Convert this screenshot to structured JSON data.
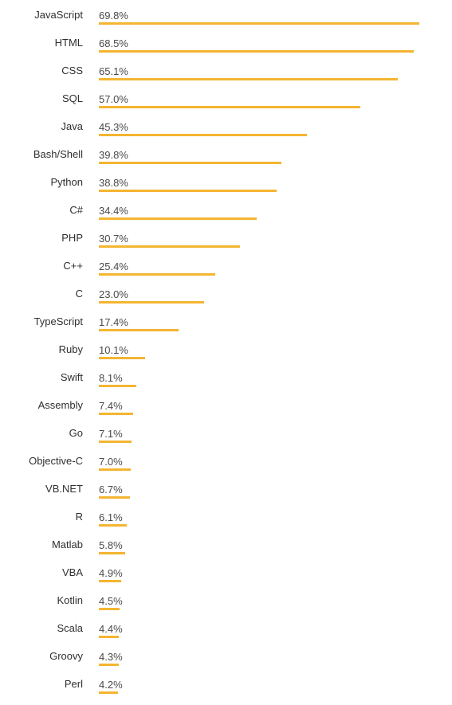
{
  "colors": {
    "bar": "#f4b531",
    "label": "#2f2f2f",
    "value": "#4a4a4a"
  },
  "chart_data": {
    "type": "bar",
    "orientation": "horizontal",
    "categories": [
      "JavaScript",
      "HTML",
      "CSS",
      "SQL",
      "Java",
      "Bash/Shell",
      "Python",
      "C#",
      "PHP",
      "C++",
      "C",
      "TypeScript",
      "Ruby",
      "Swift",
      "Assembly",
      "Go",
      "Objective-C",
      "VB.NET",
      "R",
      "Matlab",
      "VBA",
      "Kotlin",
      "Scala",
      "Groovy",
      "Perl"
    ],
    "values": [
      69.8,
      68.5,
      65.1,
      57.0,
      45.3,
      39.8,
      38.8,
      34.4,
      30.7,
      25.4,
      23.0,
      17.4,
      10.1,
      8.1,
      7.4,
      7.1,
      7.0,
      6.7,
      6.1,
      5.8,
      4.9,
      4.5,
      4.4,
      4.3,
      4.2
    ],
    "value_labels": [
      "69.8%",
      "68.5%",
      "65.1%",
      "57.0%",
      "45.3%",
      "39.8%",
      "38.8%",
      "34.4%",
      "30.7%",
      "25.4%",
      "23.0%",
      "17.4%",
      "10.1%",
      "8.1%",
      "7.4%",
      "7.1%",
      "7.0%",
      "6.7%",
      "6.1%",
      "5.8%",
      "4.9%",
      "4.5%",
      "4.4%",
      "4.3%",
      "4.2%"
    ],
    "unit": "%",
    "xlim": [
      0,
      69.8
    ],
    "grid": false,
    "legend": "none"
  }
}
